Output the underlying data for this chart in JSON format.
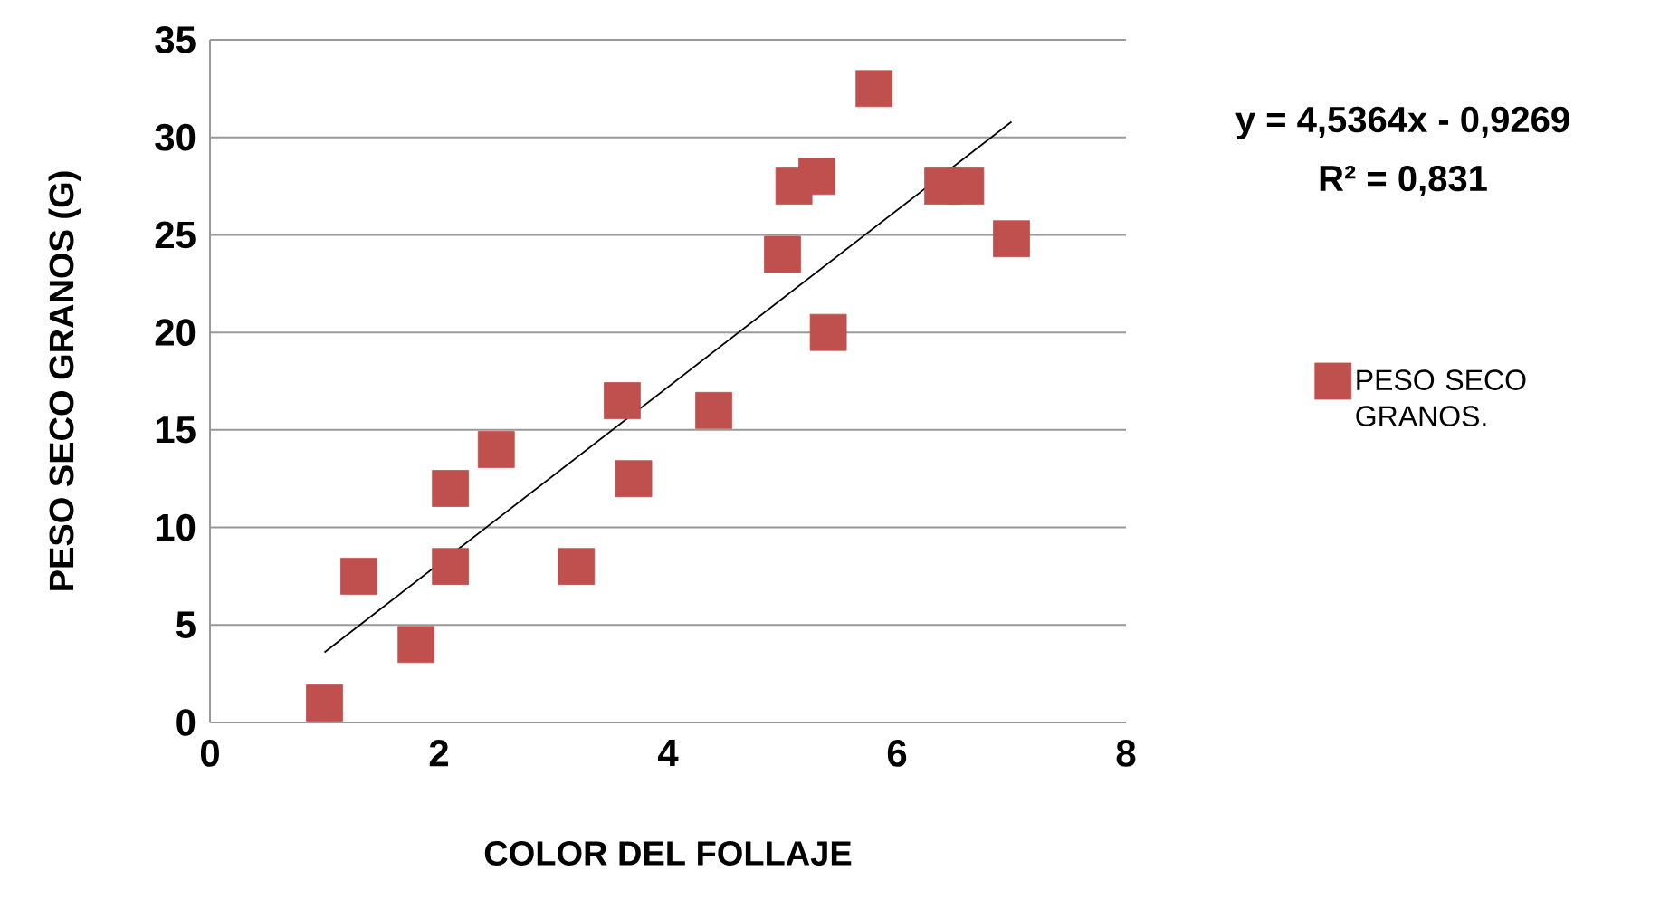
{
  "chart_data": {
    "type": "scatter",
    "xlabel": "COLOR DEL  FOLLAJE",
    "ylabel": "PESO SECO GRANOS (G)",
    "annotations": [
      "y = 4,5364x - 0,9269",
      "R² = 0,831"
    ],
    "xlim": [
      0,
      8
    ],
    "xticks": [
      0,
      2,
      4,
      6,
      8
    ],
    "ylim": [
      0,
      35
    ],
    "yticks": [
      0,
      5,
      10,
      15,
      20,
      25,
      30,
      35
    ],
    "grid": "y",
    "legend": "right",
    "series": [
      {
        "name": "PESO SECO GRANOS.",
        "marker": "square",
        "color": "#c0504d",
        "x": [
          1,
          1.3,
          1.8,
          2.1,
          2.1,
          2.5,
          3.2,
          3.6,
          3.7,
          4.4,
          5.0,
          5.1,
          5.3,
          5.4,
          5.8,
          6.4,
          6.6,
          7.0
        ],
        "values": [
          1,
          7.5,
          4,
          12,
          8,
          14,
          8,
          16.5,
          12.5,
          16,
          24,
          27.5,
          28,
          20,
          32.5,
          27.5,
          27.5,
          24.8
        ]
      },
      {
        "type": "line",
        "marker": "none",
        "line_style": "solid",
        "color": "#000000",
        "x": [
          1,
          7
        ],
        "values": [
          3.6,
          30.8
        ]
      }
    ]
  }
}
